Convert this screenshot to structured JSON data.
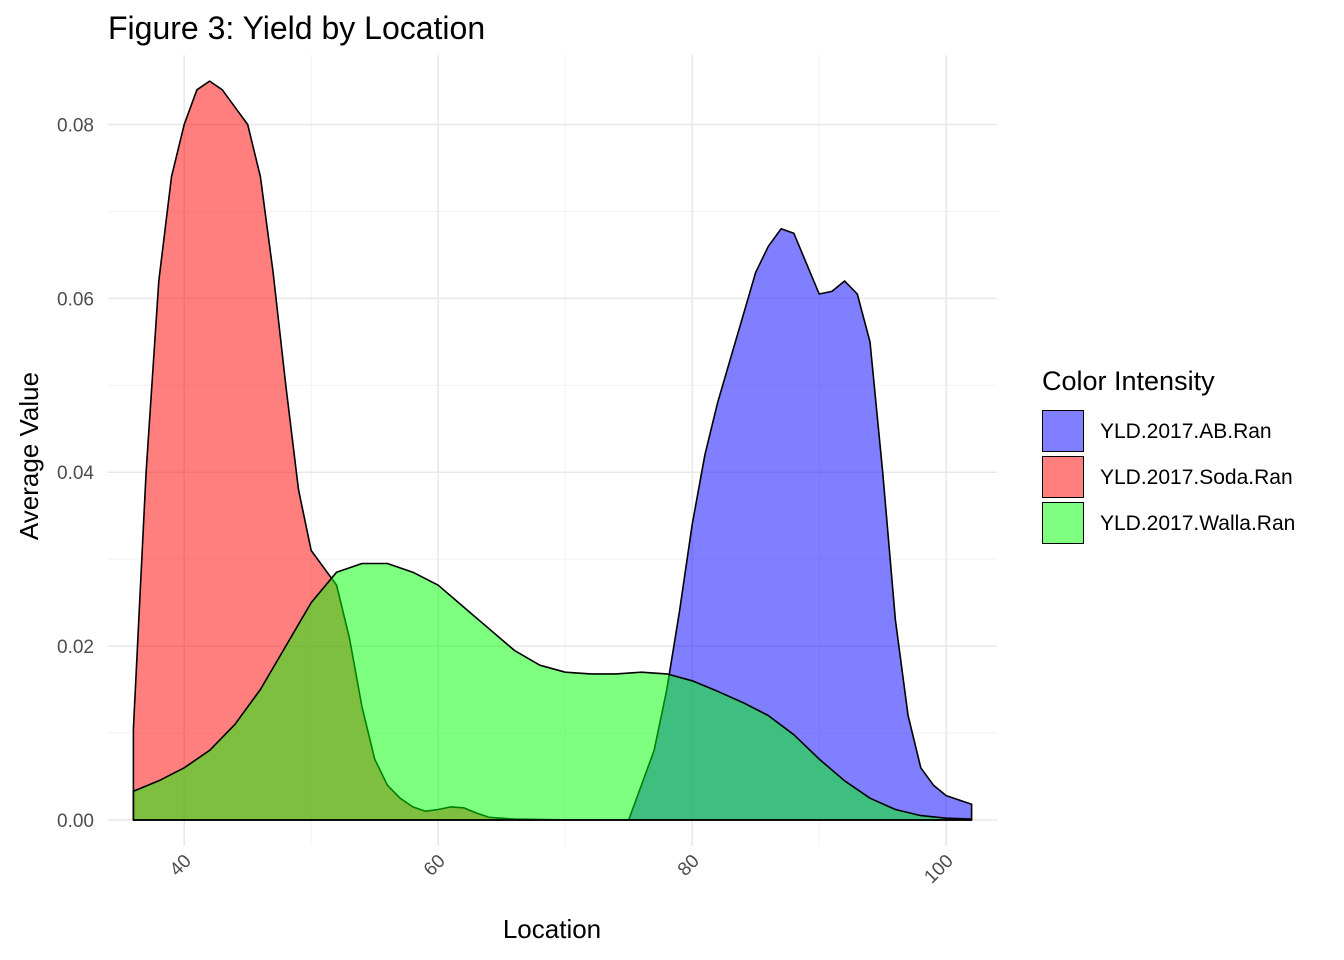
{
  "chart_data": {
    "type": "area",
    "title": "Figure 3: Yield by Location",
    "xlabel": "Location",
    "ylabel": "Average Value",
    "xlim": [
      34,
      104
    ],
    "ylim": [
      -0.003,
      0.088
    ],
    "x_ticks": [
      40,
      60,
      80,
      100
    ],
    "x_tick_labels": [
      "40",
      "60",
      "80",
      "100"
    ],
    "y_ticks": [
      0,
      0.02,
      0.04,
      0.06,
      0.08
    ],
    "y_tick_labels": [
      "0.00",
      "0.02",
      "0.04",
      "0.06",
      "0.08"
    ],
    "grid": true,
    "legend": {
      "title": "Color Intensity",
      "position": "right"
    },
    "series": [
      {
        "name": "YLD.2017.AB.Ran",
        "color": "#0000ff",
        "points": [
          [
            36,
            0
          ],
          [
            60,
            0
          ],
          [
            70,
            0
          ],
          [
            75,
            0
          ],
          [
            77,
            0.008
          ],
          [
            78,
            0.015
          ],
          [
            79,
            0.024
          ],
          [
            80,
            0.034
          ],
          [
            81,
            0.042
          ],
          [
            82,
            0.048
          ],
          [
            83,
            0.053
          ],
          [
            84,
            0.058
          ],
          [
            85,
            0.063
          ],
          [
            86,
            0.066
          ],
          [
            87,
            0.068
          ],
          [
            88,
            0.0675
          ],
          [
            89,
            0.064
          ],
          [
            90,
            0.0605
          ],
          [
            91,
            0.0608
          ],
          [
            92,
            0.062
          ],
          [
            93,
            0.0605
          ],
          [
            94,
            0.055
          ],
          [
            95,
            0.04
          ],
          [
            96,
            0.023
          ],
          [
            97,
            0.012
          ],
          [
            98,
            0.006
          ],
          [
            99,
            0.004
          ],
          [
            100,
            0.0028
          ],
          [
            102,
            0.0018
          ]
        ]
      },
      {
        "name": "YLD.2017.Soda.Ran",
        "color": "#ff0000",
        "points": [
          [
            36,
            0.0105
          ],
          [
            37,
            0.04
          ],
          [
            38,
            0.062
          ],
          [
            39,
            0.074
          ],
          [
            40,
            0.08
          ],
          [
            41,
            0.084
          ],
          [
            42,
            0.085
          ],
          [
            43,
            0.084
          ],
          [
            44,
            0.082
          ],
          [
            45,
            0.08
          ],
          [
            46,
            0.074
          ],
          [
            47,
            0.063
          ],
          [
            48,
            0.05
          ],
          [
            49,
            0.038
          ],
          [
            50,
            0.031
          ],
          [
            51,
            0.029
          ],
          [
            52,
            0.027
          ],
          [
            53,
            0.021
          ],
          [
            54,
            0.013
          ],
          [
            55,
            0.007
          ],
          [
            56,
            0.004
          ],
          [
            57,
            0.0025
          ],
          [
            58,
            0.0015
          ],
          [
            59,
            0.001
          ],
          [
            60,
            0.0012
          ],
          [
            61,
            0.0015
          ],
          [
            62,
            0.0014
          ],
          [
            63,
            0.0008
          ],
          [
            64,
            0.0003
          ],
          [
            66,
            0.0001
          ],
          [
            70,
            0
          ],
          [
            102,
            0
          ]
        ]
      },
      {
        "name": "YLD.2017.Walla.Ran",
        "color": "#00ff00",
        "points": [
          [
            36,
            0.0033
          ],
          [
            38,
            0.0045
          ],
          [
            40,
            0.006
          ],
          [
            42,
            0.008
          ],
          [
            44,
            0.011
          ],
          [
            46,
            0.015
          ],
          [
            48,
            0.02
          ],
          [
            50,
            0.025
          ],
          [
            52,
            0.0285
          ],
          [
            54,
            0.0295
          ],
          [
            56,
            0.0295
          ],
          [
            58,
            0.0285
          ],
          [
            60,
            0.027
          ],
          [
            62,
            0.0245
          ],
          [
            64,
            0.022
          ],
          [
            66,
            0.0195
          ],
          [
            68,
            0.0178
          ],
          [
            70,
            0.017
          ],
          [
            72,
            0.0168
          ],
          [
            74,
            0.0168
          ],
          [
            76,
            0.017
          ],
          [
            78,
            0.0168
          ],
          [
            80,
            0.016
          ],
          [
            82,
            0.0148
          ],
          [
            84,
            0.0135
          ],
          [
            86,
            0.012
          ],
          [
            88,
            0.0098
          ],
          [
            90,
            0.007
          ],
          [
            92,
            0.0045
          ],
          [
            94,
            0.0025
          ],
          [
            96,
            0.0012
          ],
          [
            98,
            0.0005
          ],
          [
            100,
            0.0002
          ],
          [
            102,
            0.0001
          ]
        ]
      }
    ]
  }
}
